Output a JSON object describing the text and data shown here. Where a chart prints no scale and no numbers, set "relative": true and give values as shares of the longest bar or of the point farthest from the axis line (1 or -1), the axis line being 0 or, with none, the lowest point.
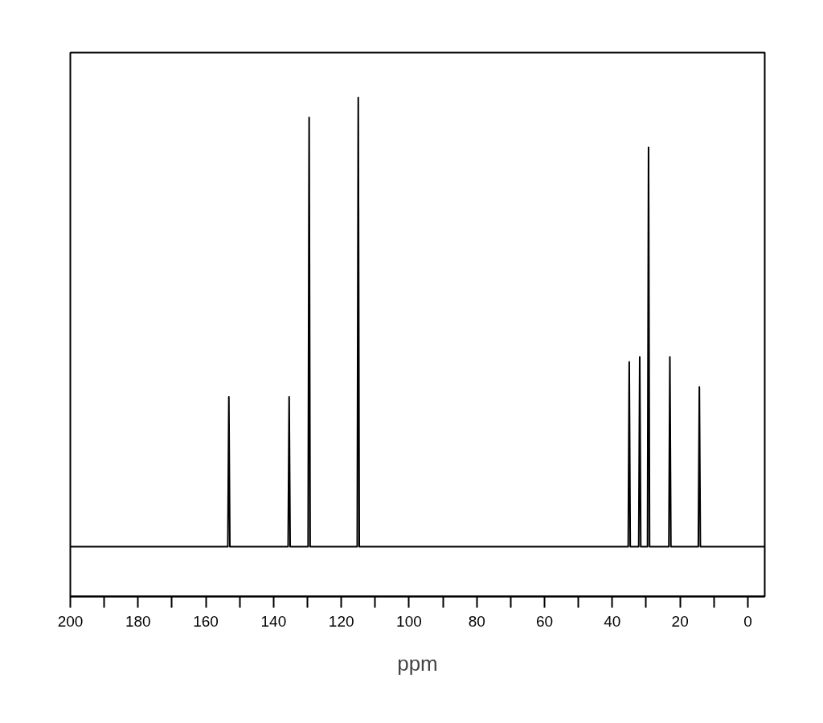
{
  "chart_data": {
    "type": "line",
    "xlabel": "ppm",
    "relative": true,
    "line_style": "solid",
    "xlim": [
      200,
      -5
    ],
    "xticks": [
      200,
      {
        "value": 190,
        "label": null
      },
      180,
      {
        "value": 170,
        "label": null
      },
      160,
      {
        "value": 150,
        "label": null
      },
      140,
      {
        "value": 130,
        "label": null
      },
      120,
      {
        "value": 110,
        "label": null
      },
      100,
      {
        "value": 90,
        "label": null
      },
      80,
      {
        "value": 70,
        "label": null
      },
      60,
      {
        "value": 50,
        "label": null
      },
      40,
      {
        "value": 30,
        "label": null
      },
      20,
      {
        "value": 10,
        "label": null
      },
      0
    ],
    "x": [
      200,
      153.5,
      153.2,
      152.9,
      135.7,
      135.4,
      135.1,
      129.8,
      129.5,
      129.2,
      115.3,
      115.0,
      114.7,
      35.3,
      35.0,
      34.7,
      32.2,
      31.9,
      31.6,
      29.6,
      29.3,
      29.0,
      23.3,
      23.0,
      22.7,
      14.6,
      14.3,
      14.0,
      -5
    ],
    "series": [
      {
        "color": "#000000",
        "values": [
          0.1,
          0.1,
          0.4,
          0.1,
          0.1,
          0.4,
          0.1,
          0.1,
          0.96,
          0.1,
          0.1,
          1,
          0.1,
          0.1,
          0.47,
          0.1,
          0.1,
          0.48,
          0.1,
          0.1,
          0.9,
          0.1,
          0.1,
          0.48,
          0.1,
          0.1,
          0.42,
          0.1,
          0.1
        ]
      }
    ]
  }
}
